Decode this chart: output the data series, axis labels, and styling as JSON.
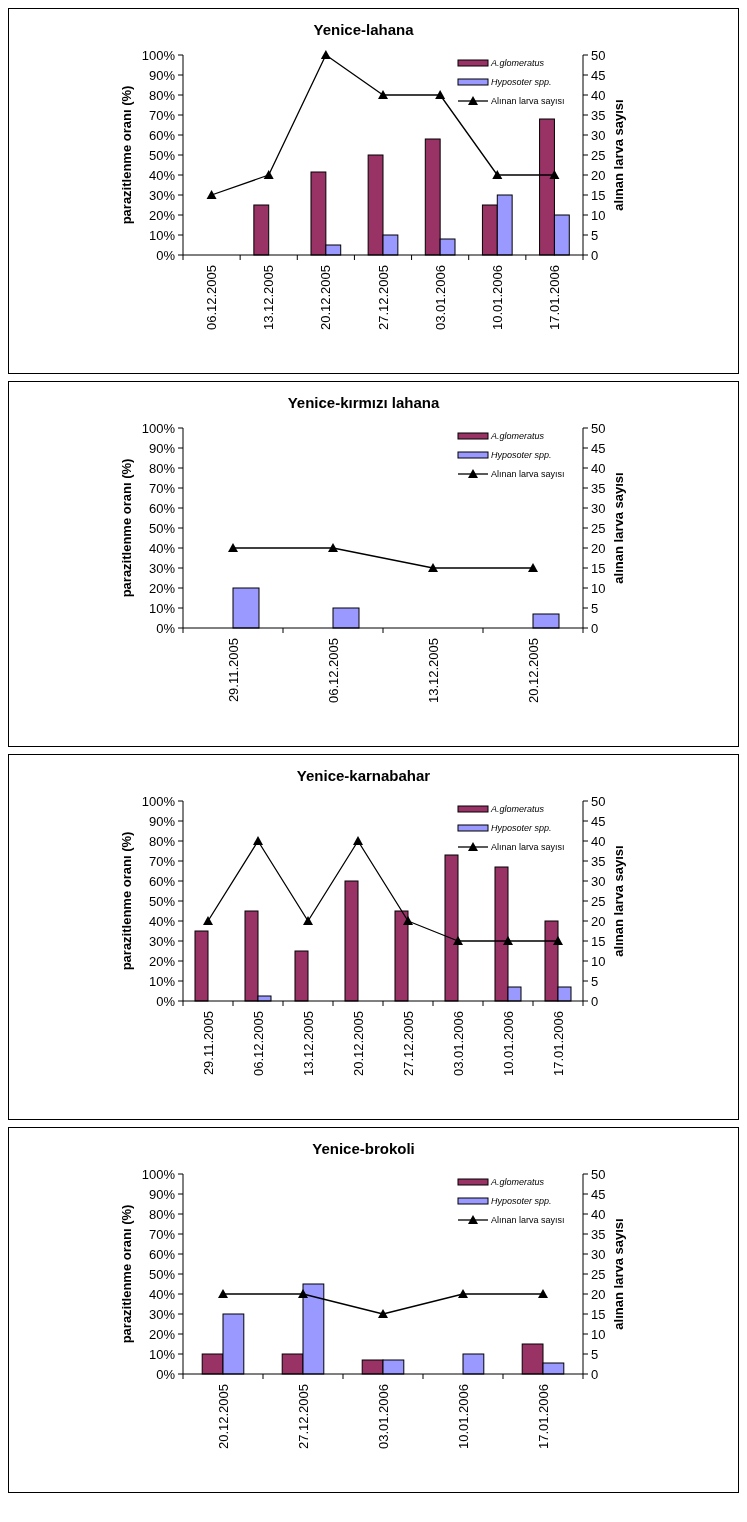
{
  "chart_data": [
    {
      "type": "bar",
      "title": "Yenice-lahana",
      "ylabel": "parazitlenme oranı (%)",
      "y2label": "alınan larva sayısı",
      "categories": [
        "06.12.2005",
        "13.12.2005",
        "20.12.2005",
        "27.12.2005",
        "03.01.2006",
        "10.01.2006",
        "17.01.2006"
      ],
      "ylim": [
        0,
        100
      ],
      "yticks": [
        {
          "value": 0,
          "label": "0%"
        },
        {
          "value": 10,
          "label": "10%"
        },
        {
          "value": 20,
          "label": "20%"
        },
        {
          "value": 30,
          "label": "30%"
        },
        {
          "value": 40,
          "label": "40%"
        },
        {
          "value": 50,
          "label": "50%"
        },
        {
          "value": 60,
          "label": "60%"
        },
        {
          "value": 70,
          "label": "70%"
        },
        {
          "value": 80,
          "label": "80%"
        },
        {
          "value": 90,
          "label": "90%"
        },
        {
          "value": 100,
          "label": "100%"
        }
      ],
      "y2lim": [
        0,
        50
      ],
      "y2ticks": [
        0,
        5,
        10,
        15,
        20,
        25,
        30,
        35,
        40,
        45,
        50
      ],
      "legend": "top right",
      "marker": "triangle",
      "series": [
        {
          "name": "A.glomeratus",
          "type": "bar",
          "color": "#993366",
          "values": [
            null,
            25,
            41.5,
            50,
            58,
            25,
            68
          ]
        },
        {
          "name": "Hyposoter spp.",
          "type": "bar",
          "color": "#9999ff",
          "values": [
            null,
            null,
            5,
            10,
            8,
            30,
            20
          ]
        },
        {
          "name": "Alınan larva sayısı",
          "type": "line",
          "axis": "y2",
          "color": "#000000",
          "values": [
            15,
            20,
            50,
            40,
            40,
            20,
            20
          ]
        }
      ]
    },
    {
      "type": "bar",
      "title": "Yenice-kırmızı lahana",
      "ylabel": "parazitlenme oranı (%)",
      "y2label": "alınan larva sayısı",
      "categories": [
        "29.11.2005",
        "06.12.2005",
        "13.12.2005",
        "20.12.2005"
      ],
      "ylim": [
        0,
        100
      ],
      "yticks": [
        {
          "value": 0,
          "label": "0%"
        },
        {
          "value": 10,
          "label": "10%"
        },
        {
          "value": 20,
          "label": "20%"
        },
        {
          "value": 30,
          "label": "30%"
        },
        {
          "value": 40,
          "label": "40%"
        },
        {
          "value": 50,
          "label": "50%"
        },
        {
          "value": 60,
          "label": "60%"
        },
        {
          "value": 70,
          "label": "70%"
        },
        {
          "value": 80,
          "label": "80%"
        },
        {
          "value": 90,
          "label": "90%"
        },
        {
          "value": 100,
          "label": "100%"
        }
      ],
      "y2lim": [
        0,
        50
      ],
      "y2ticks": [
        0,
        5,
        10,
        15,
        20,
        25,
        30,
        35,
        40,
        45,
        50
      ],
      "legend": "top right",
      "marker": "triangle",
      "series": [
        {
          "name": "A.glomeratus",
          "type": "bar",
          "color": "#993366",
          "values": [
            null,
            null,
            null,
            null
          ]
        },
        {
          "name": "Hyposoter spp.",
          "type": "bar",
          "color": "#9999ff",
          "values": [
            20,
            10,
            null,
            7
          ]
        },
        {
          "name": "Alınan larva sayısı",
          "type": "line",
          "axis": "y2",
          "color": "#000000",
          "values": [
            20,
            20,
            15,
            15
          ]
        }
      ]
    },
    {
      "type": "bar",
      "title": "Yenice-karnabahar",
      "ylabel": "parazitlenme oranı (%)",
      "y2label": "alınan larva sayısı",
      "categories": [
        "29.11.2005",
        "06.12.2005",
        "13.12.2005",
        "20.12.2005",
        "27.12.2005",
        "03.01.2006",
        "10.01.2006",
        "17.01.2006"
      ],
      "ylim": [
        0,
        100
      ],
      "yticks": [
        {
          "value": 0,
          "label": "0%"
        },
        {
          "value": 10,
          "label": "10%"
        },
        {
          "value": 20,
          "label": "20%"
        },
        {
          "value": 30,
          "label": "30%"
        },
        {
          "value": 40,
          "label": "40%"
        },
        {
          "value": 50,
          "label": "50%"
        },
        {
          "value": 60,
          "label": "60%"
        },
        {
          "value": 70,
          "label": "70%"
        },
        {
          "value": 80,
          "label": "80%"
        },
        {
          "value": 90,
          "label": "90%"
        },
        {
          "value": 100,
          "label": "100%"
        }
      ],
      "y2lim": [
        0,
        50
      ],
      "y2ticks": [
        0,
        5,
        10,
        15,
        20,
        25,
        30,
        35,
        40,
        45,
        50
      ],
      "legend": "top right",
      "marker": "triangle",
      "series": [
        {
          "name": "A.glomeratus",
          "type": "bar",
          "color": "#993366",
          "values": [
            35,
            45,
            25,
            60,
            45,
            73,
            67,
            40
          ]
        },
        {
          "name": "Hyposoter spp.",
          "type": "bar",
          "color": "#9999ff",
          "values": [
            null,
            2.5,
            null,
            null,
            null,
            null,
            7,
            7
          ]
        },
        {
          "name": "Alınan larva sayısı",
          "type": "line",
          "axis": "y2",
          "color": "#000000",
          "values": [
            20,
            40,
            20,
            40,
            20,
            15,
            15,
            15
          ]
        }
      ]
    },
    {
      "type": "bar",
      "title": "Yenice-brokoli",
      "ylabel": "parazitlenme oranı (%)",
      "y2label": "alınan larva sayısı",
      "categories": [
        "20.12.2005",
        "27.12.2005",
        "03.01.2006",
        "10.01.2006",
        "17.01.2006"
      ],
      "ylim": [
        0,
        100
      ],
      "yticks": [
        {
          "value": 0,
          "label": "0%"
        },
        {
          "value": 10,
          "label": "10%"
        },
        {
          "value": 20,
          "label": "20%"
        },
        {
          "value": 30,
          "label": "30%"
        },
        {
          "value": 40,
          "label": "40%"
        },
        {
          "value": 50,
          "label": "50%"
        },
        {
          "value": 60,
          "label": "60%"
        },
        {
          "value": 70,
          "label": "70%"
        },
        {
          "value": 80,
          "label": "80%"
        },
        {
          "value": 90,
          "label": "90%"
        },
        {
          "value": 100,
          "label": "100%"
        }
      ],
      "y2lim": [
        0,
        50
      ],
      "y2ticks": [
        0,
        5,
        10,
        15,
        20,
        25,
        30,
        35,
        40,
        45,
        50
      ],
      "legend": "top right",
      "marker": "triangle",
      "series": [
        {
          "name": "A.glomeratus",
          "type": "bar",
          "color": "#993366",
          "values": [
            10,
            10,
            7,
            null,
            15
          ]
        },
        {
          "name": "Hyposoter spp.",
          "type": "bar",
          "color": "#9999ff",
          "values": [
            30,
            45,
            7,
            10,
            5.5
          ]
        },
        {
          "name": "Alınan larva sayısı",
          "type": "line",
          "axis": "y2",
          "color": "#000000",
          "values": [
            20,
            20,
            15,
            20,
            20
          ]
        }
      ]
    }
  ]
}
